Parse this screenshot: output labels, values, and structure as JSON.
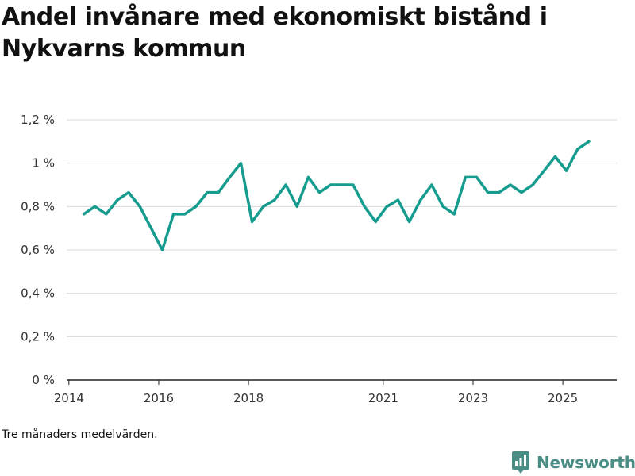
{
  "title": "Andel invånare med ekonomiskt bistånd i Nykvarns kommun",
  "footnote": "Tre månaders medelvärden.",
  "brand": "Newsworthy",
  "colors": {
    "line": "#169c8e",
    "grid": "#d9d9d9",
    "axis": "#222222",
    "brand": "#4a8d84"
  },
  "chart_data": {
    "type": "line",
    "title": "Andel invånare med ekonomiskt bistånd i Nykvarns kommun",
    "xlabel": "",
    "ylabel": "",
    "xlim": [
      2013.95,
      2026.2
    ],
    "ylim": [
      0,
      1.2
    ],
    "grid": true,
    "legend": "none",
    "y_ticks": [
      {
        "value": 0,
        "label": "0 %"
      },
      {
        "value": 0.2,
        "label": "0,2 %"
      },
      {
        "value": 0.4,
        "label": "0,4 %"
      },
      {
        "value": 0.6,
        "label": "0,6 %"
      },
      {
        "value": 0.8,
        "label": "0,8 %"
      },
      {
        "value": 1.0,
        "label": "1 %"
      },
      {
        "value": 1.2,
        "label": "1,2 %"
      }
    ],
    "x_ticks": [
      {
        "value": 2014,
        "label": "2014"
      },
      {
        "value": 2016,
        "label": "2016"
      },
      {
        "value": 2018,
        "label": "2018"
      },
      {
        "value": 2021,
        "label": "2021"
      },
      {
        "value": 2023,
        "label": "2023"
      },
      {
        "value": 2025,
        "label": "2025"
      }
    ],
    "series": [
      {
        "name": "Andel invånare med ekonomiskt bistånd",
        "x": [
          2014.33,
          2014.58,
          2014.83,
          2015.08,
          2015.33,
          2015.58,
          2015.83,
          2016.08,
          2016.33,
          2016.58,
          2016.83,
          2017.08,
          2017.33,
          2017.58,
          2017.83,
          2018.08,
          2018.33,
          2018.58,
          2018.83,
          2019.08,
          2019.33,
          2019.58,
          2019.83,
          2020.08,
          2020.33,
          2020.58,
          2020.83,
          2021.08,
          2021.33,
          2021.58,
          2021.83,
          2022.08,
          2022.33,
          2022.58,
          2022.83,
          2023.08,
          2023.33,
          2023.58,
          2023.83,
          2024.08,
          2024.33,
          2024.58,
          2024.83,
          2025.08,
          2025.33,
          2025.58
        ],
        "y": [
          0.765,
          0.8,
          0.765,
          0.83,
          0.865,
          0.8,
          0.7,
          0.6,
          0.765,
          0.765,
          0.8,
          0.865,
          0.865,
          0.935,
          1.0,
          0.73,
          0.8,
          0.83,
          0.9,
          0.8,
          0.935,
          0.865,
          0.9,
          0.9,
          0.9,
          0.8,
          0.73,
          0.8,
          0.83,
          0.73,
          0.83,
          0.9,
          0.8,
          0.765,
          0.935,
          0.935,
          0.865,
          0.865,
          0.9,
          0.865,
          0.9,
          0.965,
          1.03,
          0.965,
          1.065,
          1.1
        ]
      }
    ]
  }
}
